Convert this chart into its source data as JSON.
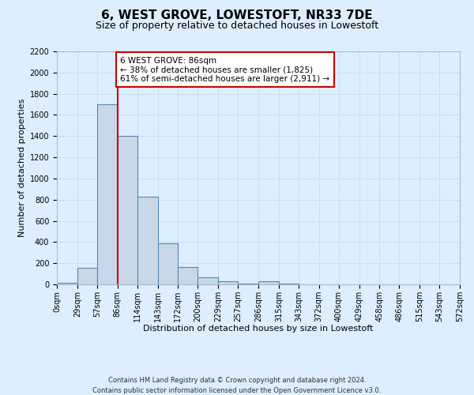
{
  "title": "6, WEST GROVE, LOWESTOFT, NR33 7DE",
  "subtitle": "Size of property relative to detached houses in Lowestoft",
  "xlabel": "Distribution of detached houses by size in Lowestoft",
  "ylabel": "Number of detached properties",
  "bin_edges": [
    0,
    29,
    57,
    86,
    114,
    143,
    172,
    200,
    229,
    257,
    286,
    315,
    343,
    372,
    400,
    429,
    458,
    486,
    515,
    543,
    572
  ],
  "bar_heights": [
    15,
    155,
    1700,
    1400,
    830,
    385,
    165,
    65,
    30,
    5,
    30,
    5,
    0,
    0,
    0,
    0,
    0,
    0,
    0,
    0
  ],
  "bar_color": "#c8d8e8",
  "bar_edgecolor": "#5588bb",
  "bar_linewidth": 0.8,
  "vline_x": 86,
  "vline_color": "#cc0000",
  "vline_linewidth": 1.5,
  "annotation_title": "6 WEST GROVE: 86sqm",
  "annotation_line1": "← 38% of detached houses are smaller (1,825)",
  "annotation_line2": "61% of semi-detached houses are larger (2,911) →",
  "annotation_box_color": "#ffffff",
  "annotation_box_edgecolor": "#cc0000",
  "ylim": [
    0,
    2200
  ],
  "yticks": [
    0,
    200,
    400,
    600,
    800,
    1000,
    1200,
    1400,
    1600,
    1800,
    2000,
    2200
  ],
  "grid_color": "#ccddee",
  "background_color": "#ddeeff",
  "footer_line1": "Contains HM Land Registry data © Crown copyright and database right 2024.",
  "footer_line2": "Contains public sector information licensed under the Open Government Licence v3.0.",
  "title_fontsize": 11,
  "subtitle_fontsize": 9,
  "axis_label_fontsize": 8,
  "tick_fontsize": 7,
  "annotation_fontsize": 7.5
}
